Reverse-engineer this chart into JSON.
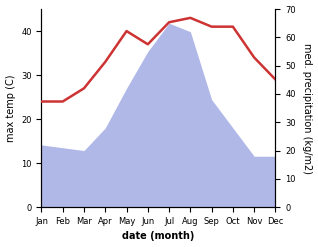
{
  "months": [
    "Jan",
    "Feb",
    "Mar",
    "Apr",
    "May",
    "Jun",
    "Jul",
    "Aug",
    "Sep",
    "Oct",
    "Nov",
    "Dec"
  ],
  "month_indices": [
    1,
    2,
    3,
    4,
    5,
    6,
    7,
    8,
    9,
    10,
    11,
    12
  ],
  "temperature": [
    24,
    24,
    27,
    33,
    40,
    37,
    42,
    43,
    41,
    41,
    34,
    29
  ],
  "precipitation_kg": [
    22,
    21,
    20,
    28,
    42,
    55,
    65,
    62,
    38,
    28,
    18,
    18
  ],
  "temp_color": "#cd3333",
  "precip_fill_color": "#b0b8e8",
  "temp_ylim": [
    0,
    45
  ],
  "temp_yticks": [
    0,
    10,
    20,
    30,
    40
  ],
  "precip_ylim": [
    0,
    70
  ],
  "precip_yticks": [
    0,
    10,
    20,
    30,
    40,
    50,
    60,
    70
  ],
  "ylabel_left": "max temp (C)",
  "ylabel_right": "med. precipitation (kg/m2)",
  "xlabel": "date (month)",
  "background_color": "#ffffff",
  "temp_linewidth": 1.8,
  "label_fontsize": 7,
  "tick_fontsize": 6,
  "xlabel_fontsize": 7
}
